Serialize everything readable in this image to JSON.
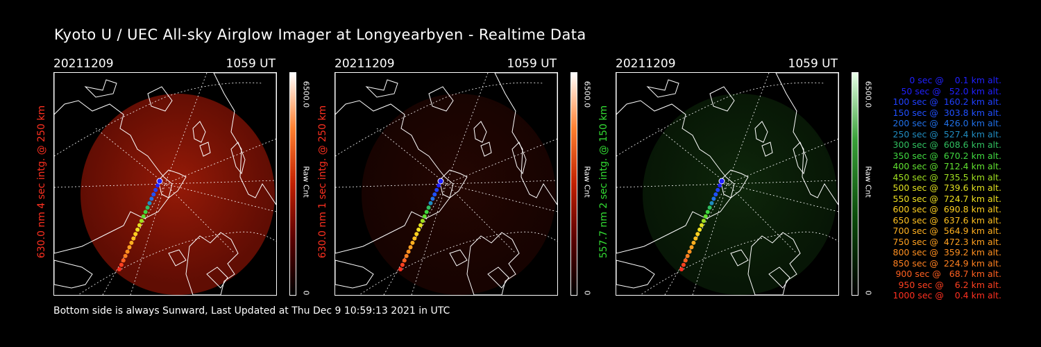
{
  "title": "Kyoto U / UEC All-sky Airglow Imager at Longyearbyen - Realtime Data",
  "panels": [
    {
      "date": "20211209",
      "time": "1059 UT",
      "ylabel": "630.0 nm 4 sec intg. @ 250 km",
      "label_color": "#ff3020",
      "colorbar_max": "6500.0",
      "colorbar_min": "0",
      "colorbar_unit": "Raw Cnt",
      "colormap": "red",
      "glow_level": 0.75
    },
    {
      "date": "20211209",
      "time": "1059 UT",
      "ylabel": "630.0 nm 1 sec intg. @ 250 km",
      "label_color": "#ff3020",
      "colorbar_max": "6500.0",
      "colorbar_min": "0",
      "colorbar_unit": "Raw Cnt",
      "colormap": "red",
      "glow_level": 0.18
    },
    {
      "date": "20211209",
      "time": "1059 UT",
      "ylabel": "557.7 nm 2 sec intg. @ 150 km",
      "label_color": "#33dd33",
      "colorbar_max": "6500.0",
      "colorbar_min": "0",
      "colorbar_unit": "Raw Cnt",
      "colormap": "green",
      "glow_level": 0.35
    }
  ],
  "footer": "Bottom side is always Sunward, Last Updated at Thu Dec  9 10:59:13 2021 in UTC",
  "legend": [
    {
      "text": "  0 sec @    0.1 km alt.",
      "color": "#2020ff"
    },
    {
      "text": " 50 sec @   52.0 km alt.",
      "color": "#2020ff"
    },
    {
      "text": "100 sec @  160.2 km alt.",
      "color": "#2040ff"
    },
    {
      "text": "150 sec @  303.8 km alt.",
      "color": "#2050ff"
    },
    {
      "text": "200 sec @  426.0 km alt.",
      "color": "#2070e8"
    },
    {
      "text": "250 sec @  527.4 km alt.",
      "color": "#208cc0"
    },
    {
      "text": "300 sec @  608.6 km alt.",
      "color": "#30c060"
    },
    {
      "text": "350 sec @  670.2 km alt.",
      "color": "#40d840"
    },
    {
      "text": "400 sec @  712.4 km alt.",
      "color": "#60e030"
    },
    {
      "text": "450 sec @  735.5 km alt.",
      "color": "#a0e020"
    },
    {
      "text": "500 sec @  739.6 km alt.",
      "color": "#e0e020"
    },
    {
      "text": "550 sec @  724.7 km alt.",
      "color": "#f0e020"
    },
    {
      "text": "600 sec @  690.8 km alt.",
      "color": "#ffd020"
    },
    {
      "text": "650 sec @  637.6 km alt.",
      "color": "#ffc020"
    },
    {
      "text": "700 sec @  564.9 km alt.",
      "color": "#ffb020"
    },
    {
      "text": "750 sec @  472.3 km alt.",
      "color": "#ffa020"
    },
    {
      "text": "800 sec @  359.2 km alt.",
      "color": "#ff9020"
    },
    {
      "text": "850 sec @  224.9 km alt.",
      "color": "#ff8020"
    },
    {
      "text": "900 sec @   68.7 km alt.",
      "color": "#ff6020"
    },
    {
      "text": "950 sec @    6.2 km alt.",
      "color": "#ff4020"
    },
    {
      "text": "1000 sec @    0.4 km alt.",
      "color": "#ff3020"
    }
  ],
  "colors": {
    "background": "#000000",
    "text": "#ffffff",
    "red_label": "#ff3020",
    "green_label": "#33dd33"
  }
}
